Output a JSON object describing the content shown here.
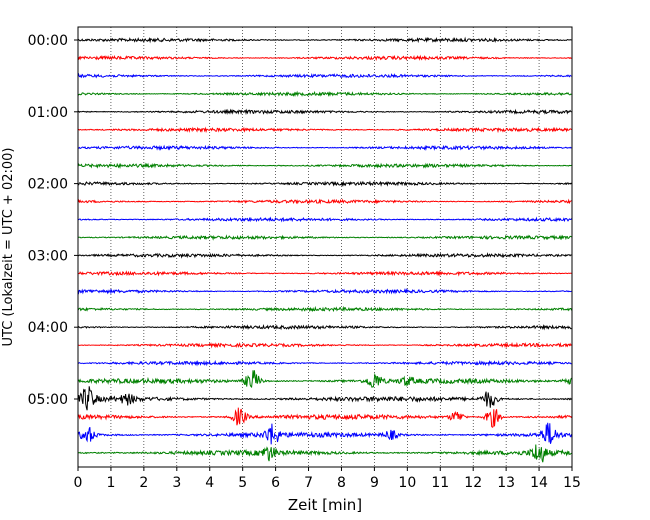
{
  "chart_data": {
    "type": "line",
    "title": "",
    "xlabel": "Zeit  [min]",
    "ylabel": "UTC (Lokalzeit = UTC + 02:00)",
    "xlim": [
      0,
      15
    ],
    "x_ticks": [
      "0",
      "1",
      "2",
      "3",
      "4",
      "5",
      "6",
      "7",
      "8",
      "9",
      "10",
      "11",
      "12",
      "13",
      "14",
      "15"
    ],
    "y_tick_labels": [
      "00:00",
      "01:00",
      "02:00",
      "03:00",
      "04:00",
      "05:00"
    ],
    "grid": "vertical dotted lines at each minute",
    "trace_interval_minutes": 15,
    "trace_colors": [
      "#000000",
      "#ff0000",
      "#0000ff",
      "#008000"
    ],
    "trace_count": 24,
    "events": [
      {
        "trace": 19,
        "minute": 5.3,
        "amplitude": 1.0
      },
      {
        "trace": 19,
        "minute": 9.0,
        "amplitude": 0.7
      },
      {
        "trace": 19,
        "minute": 10.0,
        "amplitude": 0.3
      },
      {
        "trace": 19,
        "minute": 14.9,
        "amplitude": 0.3
      },
      {
        "trace": 20,
        "minute": 0.3,
        "amplitude": 1.0
      },
      {
        "trace": 20,
        "minute": 1.5,
        "amplitude": 0.4
      },
      {
        "trace": 20,
        "minute": 12.5,
        "amplitude": 0.8
      },
      {
        "trace": 21,
        "minute": 4.9,
        "amplitude": 0.8
      },
      {
        "trace": 21,
        "minute": 12.6,
        "amplitude": 0.9
      },
      {
        "trace": 21,
        "minute": 11.5,
        "amplitude": 0.5
      },
      {
        "trace": 22,
        "minute": 0.3,
        "amplitude": 0.7
      },
      {
        "trace": 22,
        "minute": 5.9,
        "amplitude": 0.9
      },
      {
        "trace": 22,
        "minute": 9.5,
        "amplitude": 0.4
      },
      {
        "trace": 22,
        "minute": 14.3,
        "amplitude": 1.0
      },
      {
        "trace": 23,
        "minute": 5.8,
        "amplitude": 0.6
      },
      {
        "trace": 23,
        "minute": 14.0,
        "amplitude": 0.9
      }
    ]
  }
}
